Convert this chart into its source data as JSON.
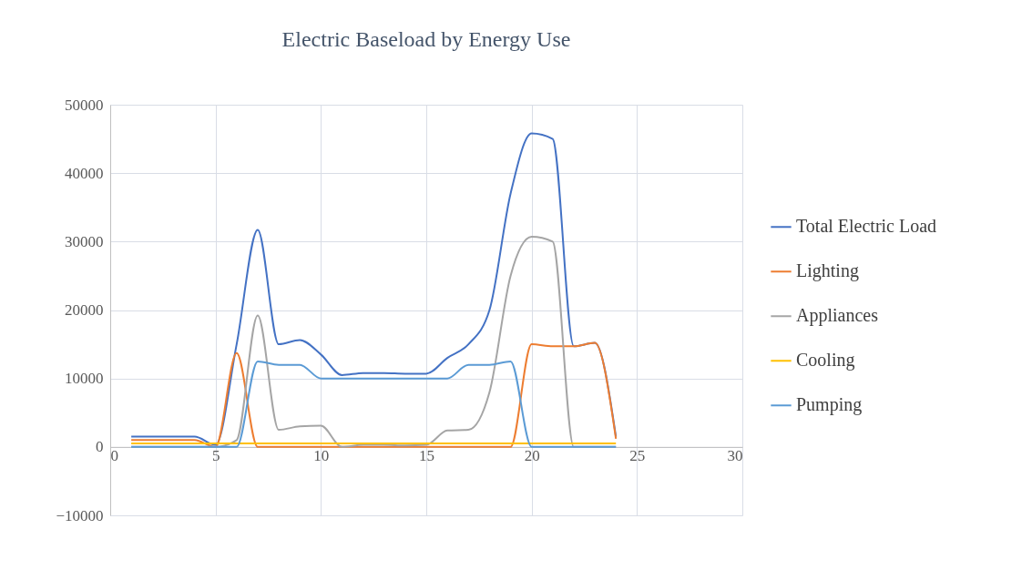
{
  "chart_data": {
    "type": "line",
    "title": "Electric Baseload by Energy Use",
    "x": [
      1,
      2,
      3,
      4,
      5,
      6,
      7,
      8,
      9,
      10,
      11,
      12,
      13,
      14,
      15,
      16,
      17,
      18,
      19,
      20,
      21,
      22,
      23,
      24
    ],
    "series": [
      {
        "name": "Total Electric Load",
        "color": "#4472c4",
        "values": [
          1500,
          1500,
          1500,
          1500,
          300,
          15000,
          31700,
          15000,
          15600,
          13500,
          10500,
          10800,
          10800,
          10700,
          10700,
          13000,
          15000,
          20000,
          37000,
          45800,
          45000,
          14700,
          15200,
          1500
        ]
      },
      {
        "name": "Lighting",
        "color": "#ed7d31",
        "values": [
          1000,
          1000,
          1000,
          1000,
          0,
          13700,
          0,
          0,
          0,
          0,
          0,
          0,
          0,
          0,
          0,
          0,
          0,
          0,
          0,
          15000,
          14700,
          14700,
          15200,
          1200
        ]
      },
      {
        "name": "Appliances",
        "color": "#a5a5a5",
        "values": [
          0,
          0,
          0,
          0,
          0,
          1000,
          19200,
          2500,
          3000,
          3100,
          0,
          300,
          300,
          200,
          300,
          2400,
          2500,
          8000,
          25000,
          30700,
          30000,
          0,
          0,
          0
        ]
      },
      {
        "name": "Cooling",
        "color": "#ffc000",
        "values": [
          500,
          500,
          500,
          500,
          500,
          500,
          500,
          500,
          500,
          500,
          500,
          500,
          500,
          500,
          500,
          500,
          500,
          500,
          500,
          500,
          500,
          500,
          500,
          500
        ]
      },
      {
        "name": "Pumping",
        "color": "#5b9bd5",
        "values": [
          0,
          0,
          0,
          0,
          0,
          0,
          12500,
          12000,
          12000,
          10000,
          10000,
          10000,
          10000,
          10000,
          10000,
          10000,
          12000,
          12000,
          12500,
          0,
          0,
          0,
          0,
          0
        ]
      }
    ],
    "xlim": [
      0,
      30
    ],
    "xticks": [
      0,
      5,
      10,
      15,
      20,
      25,
      30
    ],
    "ylim": [
      -10000,
      50000
    ],
    "yticks": [
      -10000,
      0,
      10000,
      20000,
      30000,
      40000,
      50000
    ],
    "grid": true,
    "legend": "right"
  }
}
